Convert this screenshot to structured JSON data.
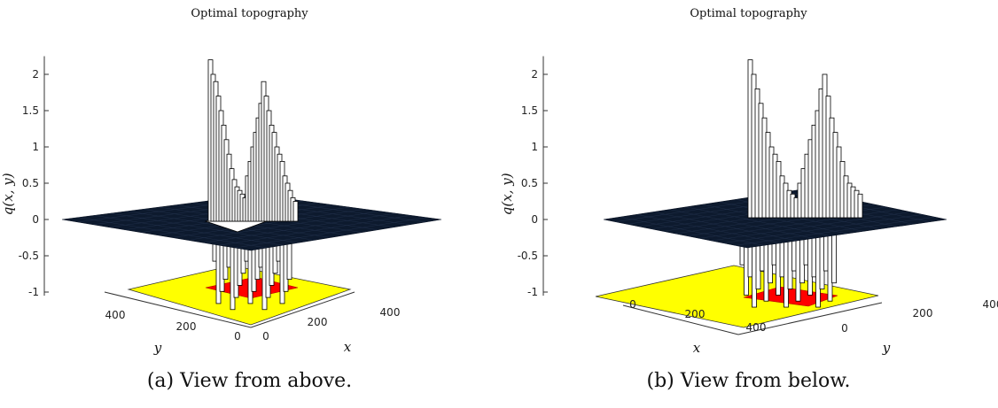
{
  "panels": [
    {
      "caption": "(a) View from above.",
      "chart_data": {
        "type": "surface3d",
        "title": "Optimal topography",
        "zlabel": "q(x, y)",
        "xlabel": "x",
        "ylabel": "y",
        "zlim": [
          -1,
          2.2
        ],
        "z_ticks": [
          "2",
          "1.5",
          "1",
          "0.5",
          "0",
          "-0.5",
          "-1"
        ],
        "x_ticks": [
          "0",
          "200",
          "400"
        ],
        "y_ticks": [
          "400",
          "200",
          "0"
        ],
        "surface_level": 0,
        "floor_level": -1,
        "colors": {
          "surface": "#0d1a2e",
          "floor": "#ffff00",
          "support": "#ff0000",
          "bars": "#ffffff"
        }
      }
    },
    {
      "caption": "(b) View from below.",
      "chart_data": {
        "type": "surface3d",
        "title": "Optimal topography",
        "zlabel": "q(x, y)",
        "xlabel": "x",
        "ylabel": "y",
        "zlim": [
          -1,
          2.2
        ],
        "z_ticks": [
          "2",
          "1.5",
          "1",
          "0.5",
          "0",
          "-0.5",
          "-1"
        ],
        "x_ticks": [
          "0",
          "200",
          "400"
        ],
        "y_ticks": [
          "0",
          "200",
          "400"
        ],
        "surface_level": 0,
        "floor_level": -1,
        "colors": {
          "surface": "#0d1a2e",
          "floor": "#ffff00",
          "support": "#ff0000",
          "bars": "#ffffff"
        }
      }
    }
  ]
}
